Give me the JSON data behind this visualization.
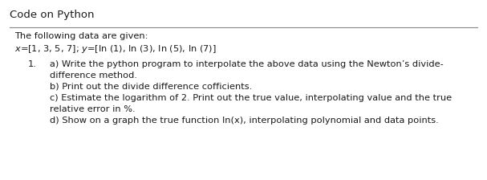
{
  "title": "Code on Python",
  "title_fontsize": 9.5,
  "background_color": "#ffffff",
  "text_color": "#1a1a1a",
  "font_size": 8.2,
  "line_color": "#888888",
  "line_lw": 0.8,
  "data_label": "The following data are given:",
  "data_eq": "$x$ = [1, 3, 5, 7]; $y$ = [ln (1), ln (3), ln (5), ln (7)]",
  "item_number": "1.",
  "sub_a1": "a) Write the python program to interpolate the above data using the Newton’s divide-",
  "sub_a2": "difference method.",
  "sub_b": "b) Print out the divide difference cofficients.",
  "sub_c1": "c) Estimate the logarithm of 2. Print out the true value, interpolating value and the true",
  "sub_c2": "relative error in %.",
  "sub_d": "d) Show on a graph the true function ln(x), interpolating polynomial and data points."
}
